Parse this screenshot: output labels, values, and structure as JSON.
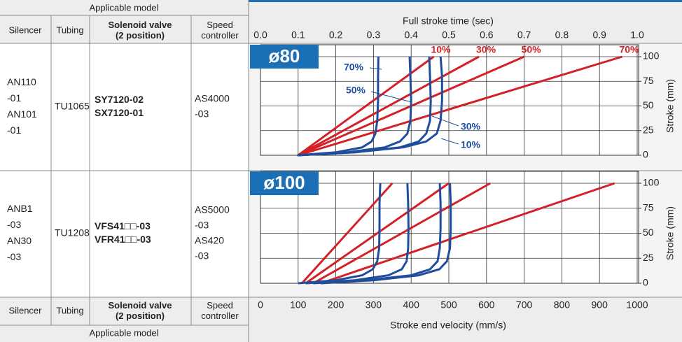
{
  "table": {
    "group_header": "Applicable model",
    "columns": [
      [
        "Silencer"
      ],
      [
        "Tubing"
      ],
      [
        "Solenoid valve",
        "(2 position)"
      ],
      [
        "Speed",
        "controller"
      ]
    ],
    "rows": [
      [
        [
          "AN110",
          "-01",
          "AN101",
          "-01"
        ],
        [
          "TU1065"
        ],
        [
          "SY7120-02",
          "SX7120-01"
        ],
        [
          "AS4000",
          "-03"
        ]
      ],
      [
        [
          "ANB1",
          "-03",
          "AN30",
          "-03"
        ],
        [
          "TU1208"
        ],
        [
          "VFS41□□-03",
          "VFR41□□-03"
        ],
        [
          "AS5000",
          "-03",
          "AS420",
          "-03"
        ]
      ]
    ]
  },
  "chart_data": [
    {
      "type": "line",
      "title": "ø80",
      "x2label": "Full stroke time (sec)",
      "ylabel": "Stroke (mm)",
      "xlim": [
        0,
        1000
      ],
      "x2lim": [
        0,
        1
      ],
      "x2ticks": [
        {
          "value": 0,
          "label": "0.0"
        },
        0.1,
        0.2,
        0.3,
        0.4,
        0.5,
        0.6,
        0.7,
        0.8,
        0.9,
        {
          "value": 1,
          "label": "1.0"
        }
      ],
      "ylim": [
        0,
        100
      ],
      "yticks": [
        0,
        25,
        50,
        75,
        100
      ],
      "grid": true,
      "series": [
        {
          "name": "10%",
          "color": "#d42027",
          "axis": "x2",
          "x": [
            0.1,
            0.46
          ],
          "values": [
            0,
            100
          ]
        },
        {
          "name": "30%",
          "color": "#d42027",
          "axis": "x2",
          "x": [
            0.1,
            0.58
          ],
          "values": [
            0,
            100
          ]
        },
        {
          "name": "50%",
          "color": "#d42027",
          "axis": "x2",
          "x": [
            0.1,
            0.7
          ],
          "values": [
            0,
            100
          ]
        },
        {
          "name": "70%",
          "color": "#d42027",
          "axis": "x2",
          "x": [
            0.1,
            0.96
          ],
          "values": [
            0,
            100
          ]
        },
        {
          "name": "10%",
          "color": "#1f4e9c",
          "x": [
            98,
            250,
            380,
            440,
            468,
            478,
            482,
            482,
            478
          ],
          "values": [
            0,
            3,
            8,
            14,
            22,
            35,
            55,
            80,
            100
          ]
        },
        {
          "name": "30%",
          "color": "#1f4e9c",
          "x": [
            98,
            250,
            370,
            420,
            440,
            450,
            452,
            450,
            448
          ],
          "values": [
            0,
            3,
            8,
            14,
            22,
            35,
            55,
            80,
            100
          ]
        },
        {
          "name": "50%",
          "color": "#1f4e9c",
          "x": [
            98,
            230,
            330,
            370,
            390,
            398,
            400,
            398,
            396
          ],
          "values": [
            0,
            3,
            8,
            14,
            22,
            35,
            55,
            80,
            100
          ]
        },
        {
          "name": "70%",
          "color": "#1f4e9c",
          "x": [
            98,
            200,
            270,
            295,
            305,
            310,
            312,
            312,
            313
          ],
          "values": [
            0,
            3,
            8,
            14,
            22,
            35,
            55,
            80,
            100
          ]
        }
      ]
    },
    {
      "type": "line",
      "title": "ø100",
      "xlabel": "Stroke end velocity (mm/s)",
      "ylabel": "Stroke (mm)",
      "xlim": [
        0,
        1000
      ],
      "x2lim": [
        0,
        1
      ],
      "xticks": [
        0,
        100,
        200,
        300,
        400,
        500,
        600,
        700,
        800,
        900,
        1000
      ],
      "ylim": [
        0,
        100
      ],
      "yticks": [
        0,
        25,
        50,
        75,
        100
      ],
      "grid": true,
      "series": [
        {
          "color": "#d42027",
          "axis": "x2",
          "x": [
            0.11,
            0.35
          ],
          "values": [
            0,
            100
          ]
        },
        {
          "color": "#d42027",
          "axis": "x2",
          "x": [
            0.12,
            0.5
          ],
          "values": [
            0,
            100
          ]
        },
        {
          "color": "#d42027",
          "axis": "x2",
          "x": [
            0.14,
            0.61
          ],
          "values": [
            0,
            100
          ]
        },
        {
          "color": "#d42027",
          "axis": "x2",
          "x": [
            0.16,
            0.94
          ],
          "values": [
            0,
            100
          ]
        },
        {
          "color": "#1f4e9c",
          "x": [
            160,
            300,
            420,
            475,
            495,
            503,
            505,
            505,
            503
          ],
          "values": [
            0,
            3,
            8,
            14,
            22,
            35,
            55,
            80,
            100
          ]
        },
        {
          "color": "#1f4e9c",
          "x": [
            140,
            280,
            400,
            450,
            470,
            476,
            478,
            478,
            476
          ],
          "values": [
            0,
            3,
            8,
            14,
            22,
            35,
            55,
            80,
            100
          ]
        },
        {
          "color": "#1f4e9c",
          "x": [
            120,
            250,
            340,
            375,
            388,
            392,
            393,
            392,
            390
          ],
          "values": [
            0,
            3,
            8,
            14,
            22,
            35,
            55,
            80,
            100
          ]
        },
        {
          "color": "#1f4e9c",
          "x": [
            100,
            200,
            270,
            298,
            310,
            315,
            316,
            316,
            318
          ],
          "values": [
            0,
            3,
            8,
            14,
            22,
            35,
            55,
            80,
            100
          ]
        }
      ]
    }
  ]
}
